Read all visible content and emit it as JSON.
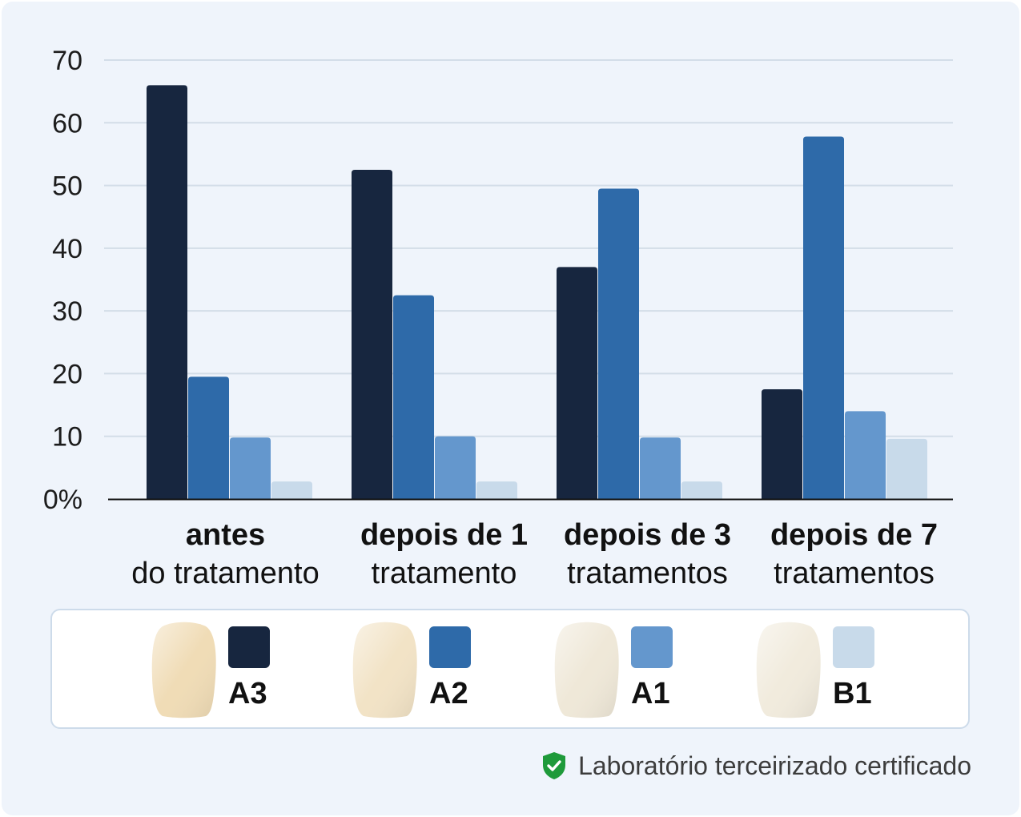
{
  "chart_data": {
    "type": "bar",
    "ylim": [
      0,
      70
    ],
    "y_ticks": [
      {
        "value": 0,
        "label": "0%"
      },
      {
        "value": 10,
        "label": "10"
      },
      {
        "value": 20,
        "label": "20"
      },
      {
        "value": 30,
        "label": "30"
      },
      {
        "value": 40,
        "label": "40"
      },
      {
        "value": 50,
        "label": "50"
      },
      {
        "value": 60,
        "label": "60"
      },
      {
        "value": 70,
        "label": "70"
      }
    ],
    "grid": true,
    "categories": [
      {
        "line1": "antes",
        "line2": "do tratamento"
      },
      {
        "line1": "depois de 1",
        "line2": "tratamento"
      },
      {
        "line1": "depois de 3",
        "line2": "tratamentos"
      },
      {
        "line1": "depois de 7",
        "line2": "tratamentos"
      }
    ],
    "series": [
      {
        "name": "A3",
        "color": "#17263f",
        "values": [
          66,
          52.5,
          37,
          17.5
        ]
      },
      {
        "name": "A2",
        "color": "#2e6aa9",
        "values": [
          19.5,
          32.5,
          49.5,
          57.8
        ]
      },
      {
        "name": "A1",
        "color": "#6497cd",
        "values": [
          9.8,
          10,
          9.8,
          14
        ]
      },
      {
        "name": "B1",
        "color": "#c8daea",
        "values": [
          2.8,
          2.8,
          2.8,
          9.6
        ]
      }
    ],
    "legend_position": "bottom"
  },
  "legend": [
    {
      "label": "A3",
      "color": "#17263f",
      "tooth_color": "#f0dcb6",
      "tooth_icon": "tooth-icon"
    },
    {
      "label": "A2",
      "color": "#2e6aa9",
      "tooth_color": "#f2e3c6",
      "tooth_icon": "tooth-icon"
    },
    {
      "label": "A1",
      "color": "#6497cd",
      "tooth_color": "#efe8d8",
      "tooth_icon": "tooth-icon"
    },
    {
      "label": "B1",
      "color": "#c8daea",
      "tooth_color": "#f1ebdd",
      "tooth_icon": "tooth-icon"
    }
  ],
  "footer": {
    "text": "Laboratório terceirizado certificado",
    "icon": "shield-check-icon",
    "icon_color": "#1e9a3a"
  }
}
